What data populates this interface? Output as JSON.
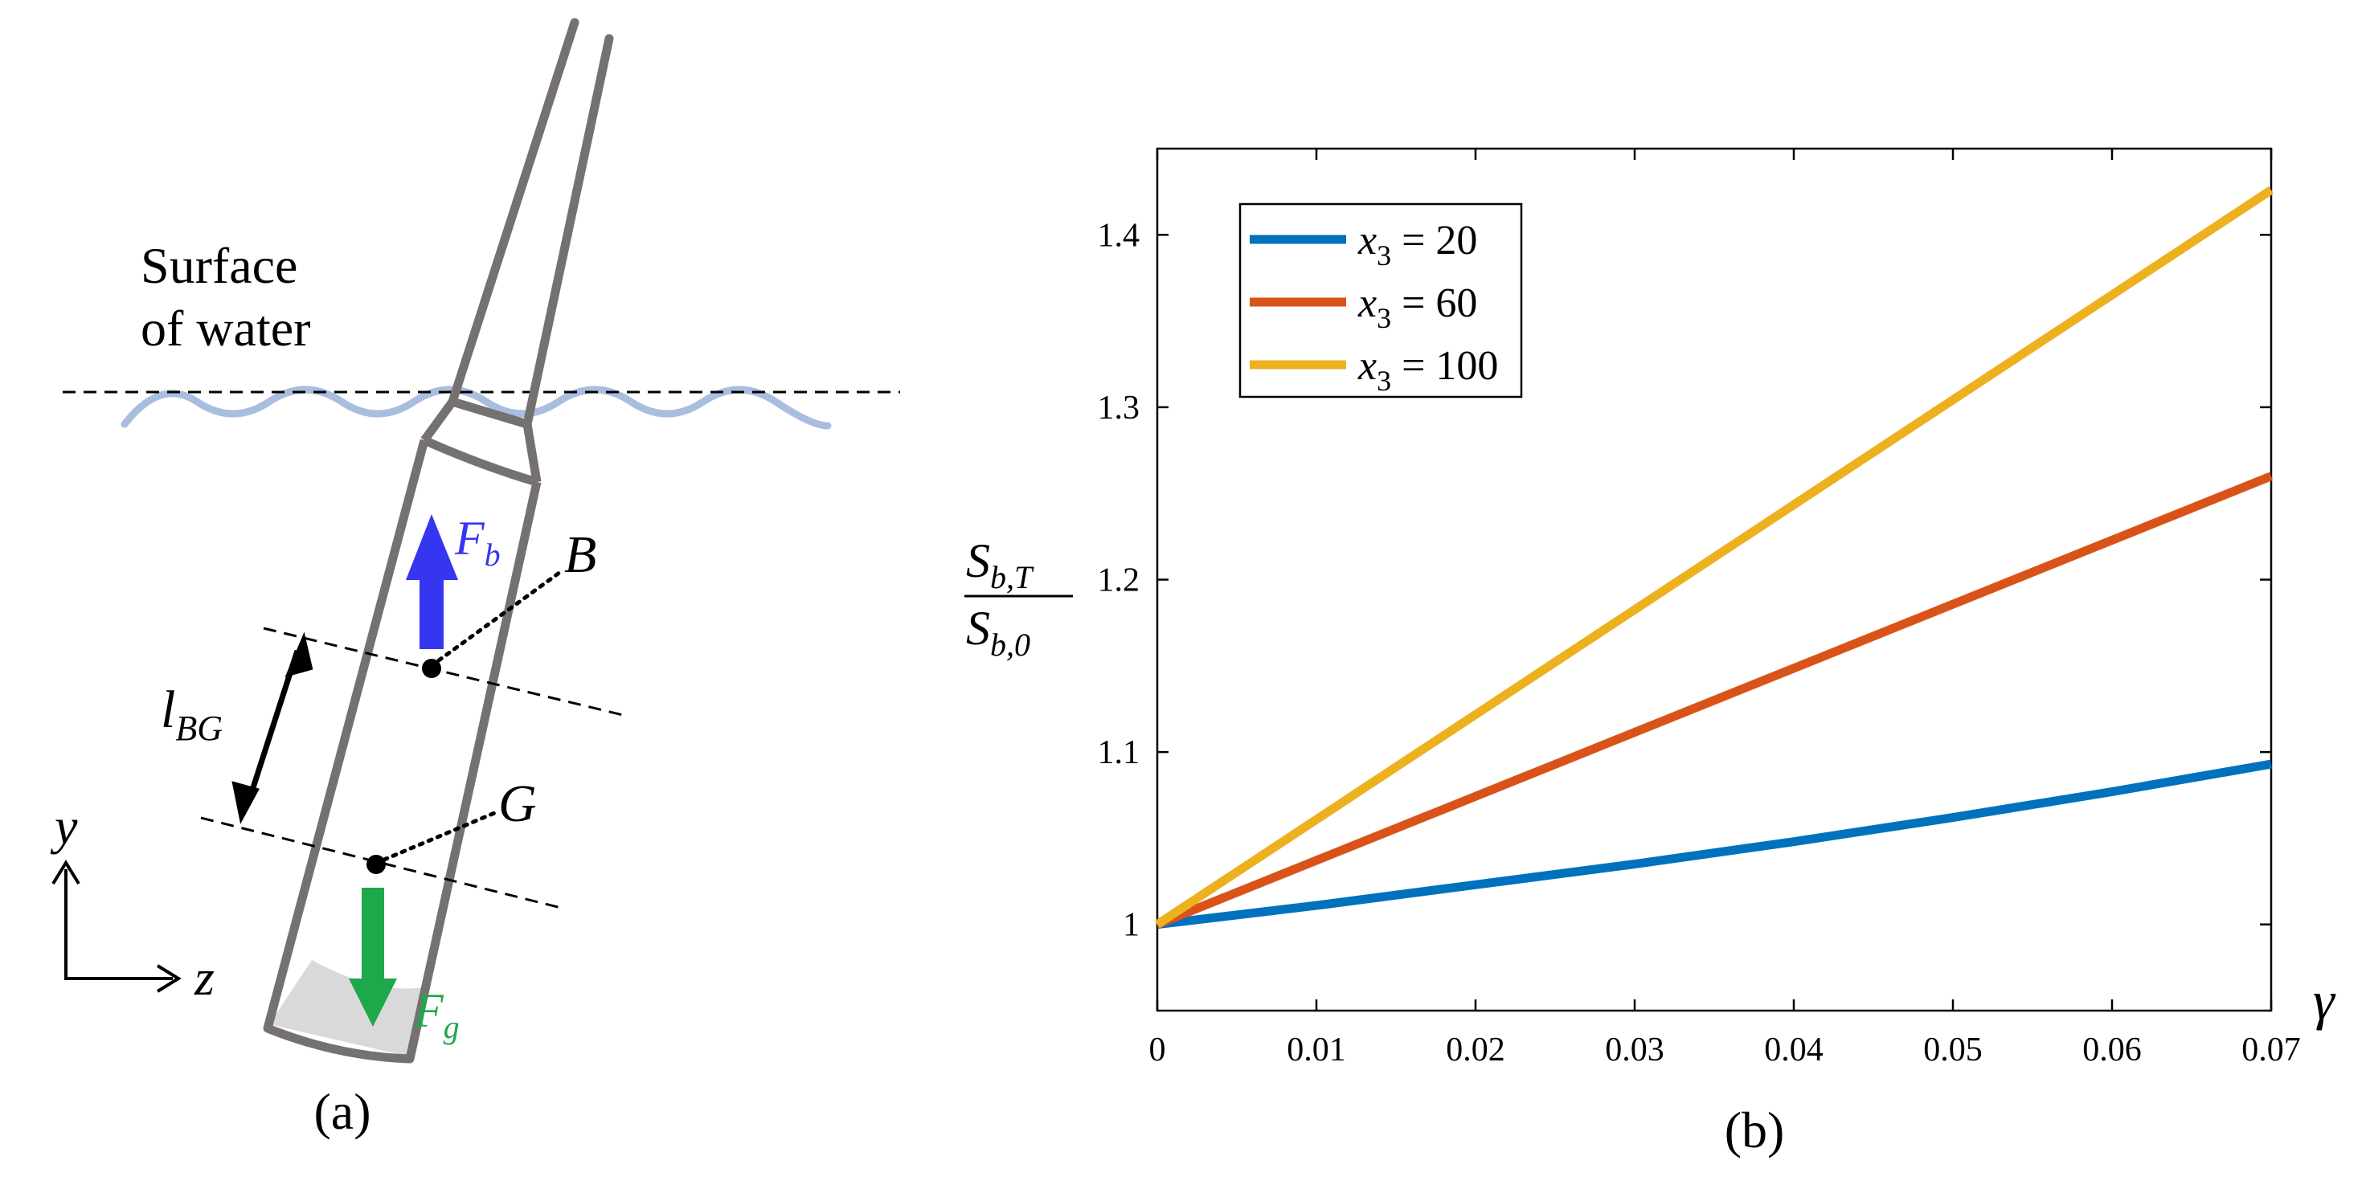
{
  "panel_a": {
    "caption": "(a)",
    "surface_label_line1": "Surface",
    "surface_label_line2": "of water",
    "buoyancy_symbol": "F",
    "buoyancy_sub": "b",
    "gravity_symbol": "F",
    "gravity_sub": "g",
    "point_b": "B",
    "point_g": "G",
    "lbg_symbol": "l",
    "lbg_sub": "BG",
    "axis_y": "y",
    "axis_z": "z",
    "colors": {
      "structure": "#767171",
      "buoyancy": "#3636f0",
      "gravity": "#1ea84c",
      "wave": "#a9bedf",
      "ballast": "#d9d9d9"
    }
  },
  "panel_b": {
    "caption": "(b)",
    "ylabel_num_main": "S",
    "ylabel_num_sub": "b,T",
    "ylabel_den_main": "S",
    "ylabel_den_sub": "b,0",
    "xlabel": "γ",
    "legend_prefix": "x",
    "legend_sub": "3",
    "chart_data": {
      "type": "line",
      "title": "",
      "xlabel": "γ",
      "ylabel": "S_{b,T} / S_{b,0}",
      "xlim": [
        0,
        0.07
      ],
      "ylim": [
        0.95,
        1.45
      ],
      "xticks": [
        "0",
        "0.01",
        "0.02",
        "0.03",
        "0.04",
        "0.05",
        "0.06",
        "0.07"
      ],
      "yticks": [
        "1",
        "1.1",
        "1.2",
        "1.3",
        "1.4"
      ],
      "grid": false,
      "legend_position": "top-left",
      "series": [
        {
          "name": "x3 = 20",
          "legend_value": "= 20",
          "color": "#0072BD",
          "x": [
            0,
            0.01,
            0.02,
            0.03,
            0.04,
            0.05,
            0.06,
            0.07
          ],
          "y": [
            1.0,
            1.011,
            1.023,
            1.035,
            1.048,
            1.062,
            1.077,
            1.093
          ]
        },
        {
          "name": "x3 = 60",
          "legend_value": "= 60",
          "color": "#D95319",
          "x": [
            0,
            0.07
          ],
          "y": [
            1.0,
            1.26
          ]
        },
        {
          "name": "x3 = 100",
          "legend_value": "= 100",
          "color": "#EDB120",
          "x": [
            0,
            0.07
          ],
          "y": [
            1.0,
            1.426
          ]
        }
      ]
    }
  }
}
